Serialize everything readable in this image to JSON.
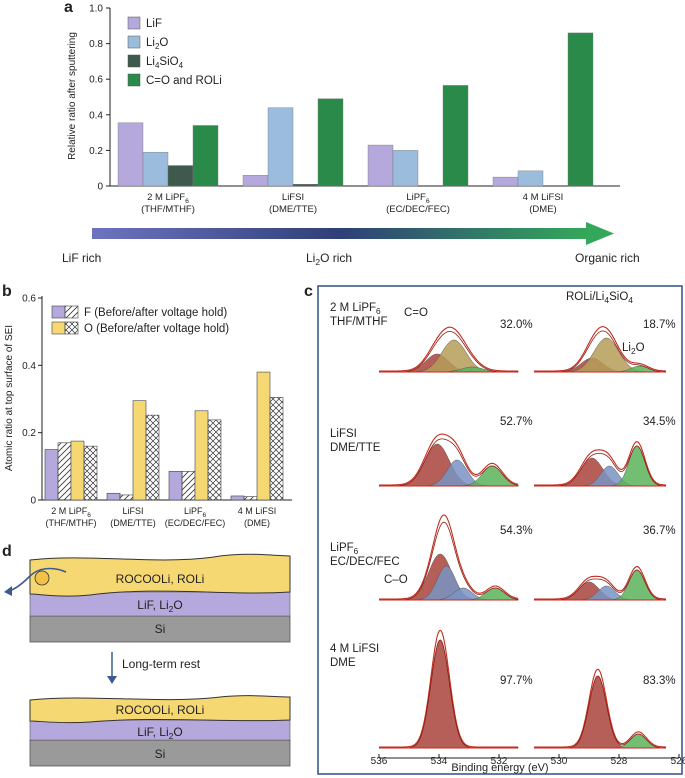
{
  "panel_labels": {
    "a": "a",
    "b": "b",
    "c": "c",
    "d": "d"
  },
  "colors": {
    "lif": "#b4a8dc",
    "li2o": "#9cbcde",
    "li4sio4": "#3e5a4d",
    "co": "#2a8a4a",
    "o_yellow": "#f6d873",
    "f_purple": "#b4a8dc",
    "frame_blue": "#3c5b90",
    "fit_red": "#c62b1e",
    "peak_maroon": "#a9433c",
    "peak_olive": "#b59d58",
    "peak_blue": "#7993c2",
    "peak_green": "#5ab35a",
    "si_gray": "#9a9a9a"
  },
  "chart_data": [
    {
      "id": "panel-a",
      "type": "bar",
      "ylabel": "Relative ratio after sputtering",
      "ylim": [
        0,
        1.0
      ],
      "yticks": [
        "0",
        "0.2",
        "0.4",
        "0.6",
        "0.8",
        "1.0"
      ],
      "categories": [
        {
          "line1": "2 M LiPF",
          "sub": "6",
          "line2": "(THF/MTHF)"
        },
        {
          "line1": "LiFSI",
          "sub": "",
          "line2": "(DME/TTE)"
        },
        {
          "line1": "LiPF",
          "sub": "6",
          "line2": "(EC/DEC/FEC)"
        },
        {
          "line1": "4 M LiFSI",
          "sub": "",
          "line2": "(DME)"
        }
      ],
      "series": [
        {
          "name": "LiF",
          "label_main": "LiF",
          "label_sub": "",
          "label_tail": "",
          "values": [
            0.355,
            0.06,
            0.23,
            0.05
          ]
        },
        {
          "name": "Li2O",
          "label_main": "Li",
          "label_sub": "2",
          "label_tail": "O",
          "values": [
            0.19,
            0.44,
            0.2,
            0.085
          ]
        },
        {
          "name": "Li4SiO4",
          "label_main": "Li",
          "label_sub": "4",
          "label_tail": "SiO",
          "label_sub2": "4",
          "values": [
            0.115,
            0.01,
            0.0,
            0.0
          ]
        },
        {
          "name": "C=O and ROLi",
          "label_main": "C=O and ROLi",
          "label_sub": "",
          "label_tail": "",
          "values": [
            0.34,
            0.49,
            0.565,
            0.86
          ]
        }
      ]
    },
    {
      "id": "panel-b",
      "type": "bar",
      "ylabel": "Atomic ratio at top surface of SEI",
      "ylim": [
        0,
        0.6
      ],
      "yticks": [
        "0",
        "0.2",
        "0.4",
        "0.6"
      ],
      "categories": [
        {
          "line1": "2 M LiPF",
          "sub": "6",
          "line2": "(THF/MTHF)"
        },
        {
          "line1": "LiFSI",
          "sub": "",
          "line2": "(DME/TTE)"
        },
        {
          "line1": "LiPF",
          "sub": "6",
          "line2": "(EC/DEC/FEC)"
        },
        {
          "line1": "4 M LiFSI",
          "sub": "",
          "line2": "(DME)"
        }
      ],
      "series": [
        {
          "name": "F before",
          "values": [
            0.15,
            0.02,
            0.085,
            0.012
          ]
        },
        {
          "name": "F after",
          "values": [
            0.17,
            0.015,
            0.085,
            0.01
          ]
        },
        {
          "name": "O before",
          "values": [
            0.175,
            0.295,
            0.265,
            0.38
          ]
        },
        {
          "name": "O after",
          "values": [
            0.16,
            0.252,
            0.238,
            0.305
          ]
        }
      ],
      "legend": [
        "F (Before/after voltage hold)",
        "O (Before/after voltage hold)"
      ]
    },
    {
      "id": "panel-c",
      "type": "line",
      "xlabel": "Binding energy (eV)",
      "xlim": [
        536,
        526
      ],
      "xticks": [
        "536",
        "534",
        "532",
        "530",
        "528",
        "526"
      ],
      "col_headers": {
        "left": "C=O",
        "right_main": "ROLi/Li",
        "right_sub": "4",
        "right_tail": "SiO",
        "right_sub2": "4"
      },
      "rows": [
        {
          "name_main": "2 M LiPF",
          "name_sub": "6",
          "name_line2": "THF/MTHF",
          "left_pct": "32.0%",
          "right_pct": "18.7%",
          "extra_main": "Li",
          "extra_sub": "2",
          "extra_tail": "O"
        },
        {
          "name_main": "LiFSI",
          "name_sub": "",
          "name_line2": "DME/TTE",
          "left_pct": "52.7%",
          "right_pct": "34.5%"
        },
        {
          "name_main": "LiPF",
          "name_sub": "6",
          "name_line2": "EC/DEC/FEC",
          "left_pct": "54.3%",
          "right_pct": "36.7%",
          "extra_left": "C–O"
        },
        {
          "name_main": "4 M LiFSI",
          "name_sub": "",
          "name_line2": "DME",
          "left_pct": "97.7%",
          "right_pct": "83.3%"
        }
      ]
    }
  ],
  "gradient_bar": {
    "left_label": "LiF rich",
    "mid_main": "Li",
    "mid_sub": "2",
    "mid_tail": "O rich",
    "right_label": "Organic rich"
  },
  "panel_d": {
    "top_layer": "ROCOOLi, ROLi",
    "mid_main": "LiF, Li",
    "mid_sub": "2",
    "mid_tail": "O",
    "substrate": "Si",
    "step_label": "Long-term rest"
  }
}
